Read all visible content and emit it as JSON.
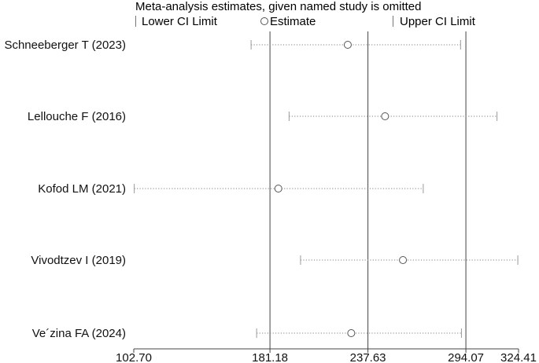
{
  "chart_data": {
    "type": "scatter",
    "title": "Meta-analysis estimates, given named study is omitted",
    "legend": {
      "items": [
        {
          "label": "Lower CI Limit",
          "marker": "tick"
        },
        {
          "label": "Estimate",
          "marker": "circle"
        },
        {
          "label": "Upper CI Limit",
          "marker": "tick"
        }
      ],
      "placement": "top"
    },
    "x_ticks": [
      "102.70",
      "181.18",
      "237.63",
      "294.07",
      "324.41"
    ],
    "xlim": [
      102.7,
      324.41
    ],
    "reference_lines": [
      181.18,
      237.63,
      294.07
    ],
    "studies": [
      {
        "name": "Schneeberger T (2023)",
        "lower": 170.3,
        "estimate": 226.0,
        "upper": 291.0
      },
      {
        "name": "Lellouche F (2016)",
        "lower": 192.2,
        "estimate": 247.5,
        "upper": 312.0
      },
      {
        "name": "Kofod LM (2021)",
        "lower": 103.0,
        "estimate": 186.0,
        "upper": 269.5
      },
      {
        "name": "Vivodtzev I (2019)",
        "lower": 198.8,
        "estimate": 257.8,
        "upper": 324.0
      },
      {
        "name": "Ve´zina FA (2024)",
        "lower": 173.5,
        "estimate": 228.0,
        "upper": 291.5
      }
    ],
    "grid": false
  },
  "colors": {
    "axis": "#444444",
    "ci_line": "#9a9a9a",
    "marker": "#555555",
    "text": "#111111"
  }
}
